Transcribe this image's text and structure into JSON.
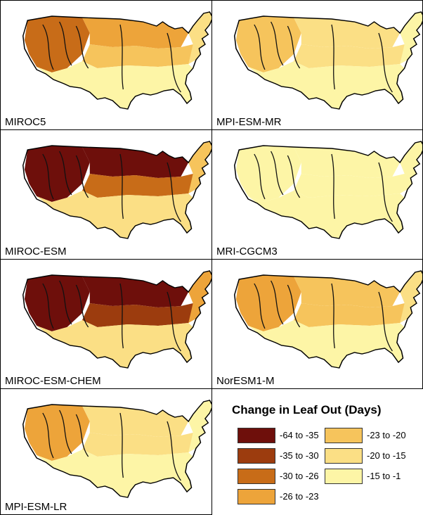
{
  "panels": [
    {
      "label": "MIROC5",
      "scheme": [
        4,
        3,
        2,
        1,
        0
      ]
    },
    {
      "label": "MPI-ESM-MR",
      "scheme": [
        2,
        1,
        1,
        0,
        0
      ]
    },
    {
      "label": "MIROC-ESM",
      "scheme": [
        6,
        6,
        4,
        2,
        1
      ]
    },
    {
      "label": "MRI-CGCM3",
      "scheme": [
        0,
        0,
        0,
        0,
        0
      ]
    },
    {
      "label": "MIROC-ESM-CHEM",
      "scheme": [
        6,
        6,
        5,
        3,
        1
      ]
    },
    {
      "label": "NorESM1-M",
      "scheme": [
        3,
        2,
        2,
        1,
        0
      ]
    },
    {
      "label": "MPI-ESM-LR",
      "scheme": [
        3,
        1,
        1,
        0,
        0
      ]
    }
  ],
  "legend": {
    "title": "Change in Leaf Out (Days)",
    "items": [
      {
        "label": "-64 to -35",
        "color": "#6e0f0b"
      },
      {
        "label": "-35 to -30",
        "color": "#9c3c0e"
      },
      {
        "label": "-30 to -26",
        "color": "#c86c18"
      },
      {
        "label": "-26 to -23",
        "color": "#eda43a"
      },
      {
        "label": "-23 to -20",
        "color": "#f6c45c"
      },
      {
        "label": "-20 to -15",
        "color": "#fbdf85"
      },
      {
        "label": "-15 to -1",
        "color": "#fdf5a6"
      }
    ]
  }
}
